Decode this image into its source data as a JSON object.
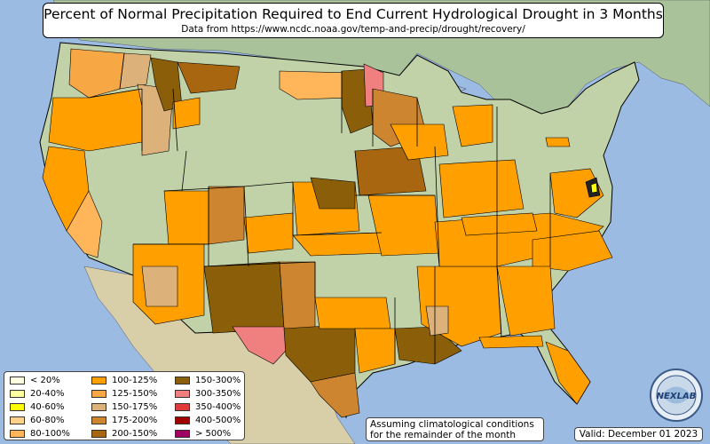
{
  "header": {
    "title": "Percent of Normal Precipitation Required to End Current Hydrological Drought in 3 Months",
    "subtitle": "Data from https://www.ncdc.noaa.gov/temp-and-precip/drought/recovery/"
  },
  "legend": {
    "items": [
      {
        "label": "< 20%",
        "color": "#ffffe0"
      },
      {
        "label": "20-40%",
        "color": "#ffffa0"
      },
      {
        "label": "40-60%",
        "color": "#ffff00"
      },
      {
        "label": "60-80%",
        "color": "#ffd28c"
      },
      {
        "label": "80-100%",
        "color": "#ffb65a"
      },
      {
        "label": "100-125%",
        "color": "#ff9f00"
      },
      {
        "label": "125-150%",
        "color": "#f7a845"
      },
      {
        "label": "150-175%",
        "color": "#ddb27a"
      },
      {
        "label": "175-200%",
        "color": "#cd8530"
      },
      {
        "label": "200-150%",
        "color": "#a86610"
      },
      {
        "label": "150-300%",
        "color": "#8b5e0a"
      },
      {
        "label": "300-350%",
        "color": "#f08080"
      },
      {
        "label": "350-400%",
        "color": "#e03a3a"
      },
      {
        "label": "400-500%",
        "color": "#a00000"
      },
      {
        "label": "> 500%",
        "color": "#a00060"
      }
    ]
  },
  "note": {
    "line1": "Assuming climatological conditions",
    "line2": "for the remainder of the month"
  },
  "valid_label": "Valid: December 01 2023",
  "logo": {
    "text": "NEXLAB"
  },
  "colors": {
    "ocean": "#9bbbe3",
    "land_north": "#b8cca2",
    "land_south": "#c9d6b0",
    "mexico": "#d8cfa8",
    "canada": "#a9c299",
    "boundary": "#000000"
  }
}
